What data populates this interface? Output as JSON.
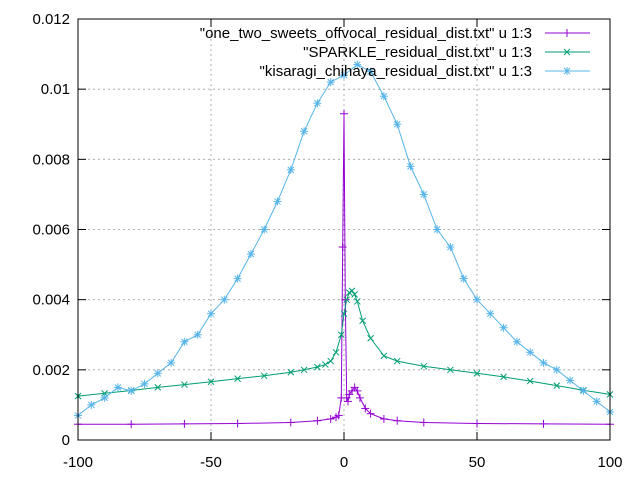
{
  "chart_data": {
    "type": "line",
    "title": "",
    "xlabel": "",
    "ylabel": "",
    "xlim": [
      -100,
      100
    ],
    "ylim": [
      0,
      0.012
    ],
    "grid": true,
    "legend_position": "top-right",
    "x_ticks": [
      "-100",
      "-50",
      "0",
      "50",
      "100"
    ],
    "y_ticks": [
      "0",
      "0.002",
      "0.004",
      "0.006",
      "0.008",
      "0.01",
      "0.012"
    ],
    "series": [
      {
        "name": "\"one_two_sweets_offvocal_residual_dist.txt\" u 1:3",
        "color": "#9400d3",
        "marker": "plus",
        "x": [
          -100,
          -80,
          -60,
          -40,
          -20,
          -10,
          -5,
          -3,
          -2,
          -1,
          -0.5,
          0,
          0.5,
          1,
          1.5,
          2,
          3,
          4,
          5,
          6,
          8,
          10,
          15,
          20,
          30,
          50,
          75,
          100
        ],
        "y": [
          0.00045,
          0.00045,
          0.00046,
          0.00047,
          0.0005,
          0.00055,
          0.0006,
          0.00065,
          0.0007,
          0.0012,
          0.0055,
          0.0093,
          0.004,
          0.0012,
          0.0011,
          0.0013,
          0.0014,
          0.0015,
          0.0014,
          0.0012,
          0.0009,
          0.00075,
          0.0006,
          0.00055,
          0.0005,
          0.00047,
          0.00046,
          0.00045
        ]
      },
      {
        "name": "\"SPARKLE_residual_dist.txt\" u 1:3",
        "color": "#009e73",
        "marker": "x",
        "x": [
          -100,
          -90,
          -80,
          -70,
          -60,
          -50,
          -40,
          -30,
          -20,
          -15,
          -10,
          -7,
          -5,
          -3,
          -1,
          0,
          1,
          2,
          3,
          4,
          5,
          7,
          10,
          15,
          20,
          30,
          40,
          50,
          60,
          70,
          80,
          90,
          100
        ],
        "y": [
          0.00125,
          0.00133,
          0.00141,
          0.0015,
          0.00158,
          0.00166,
          0.00175,
          0.00183,
          0.00193,
          0.002,
          0.00208,
          0.00215,
          0.00225,
          0.0025,
          0.003,
          0.0036,
          0.004,
          0.0042,
          0.00425,
          0.00415,
          0.00395,
          0.0034,
          0.0029,
          0.0024,
          0.00225,
          0.0021,
          0.002,
          0.0019,
          0.0018,
          0.00168,
          0.00155,
          0.00142,
          0.0013
        ]
      },
      {
        "name": "\"kisaragi_chihaya_residual_dist.txt\" u 1:3",
        "color": "#56b4e9",
        "marker": "star",
        "x": [
          -100,
          -95,
          -90,
          -85,
          -80,
          -75,
          -70,
          -65,
          -60,
          -55,
          -50,
          -45,
          -40,
          -35,
          -30,
          -25,
          -20,
          -15,
          -10,
          -5,
          0,
          5,
          10,
          15,
          20,
          25,
          30,
          35,
          40,
          45,
          50,
          55,
          60,
          65,
          70,
          75,
          80,
          85,
          90,
          95,
          100
        ],
        "y": [
          0.0007,
          0.001,
          0.0012,
          0.0015,
          0.0014,
          0.0016,
          0.0019,
          0.0022,
          0.0028,
          0.003,
          0.0036,
          0.004,
          0.0046,
          0.0053,
          0.006,
          0.0068,
          0.0077,
          0.0088,
          0.0096,
          0.0102,
          0.0104,
          0.0107,
          0.0105,
          0.0098,
          0.009,
          0.0078,
          0.007,
          0.006,
          0.0055,
          0.0046,
          0.004,
          0.0036,
          0.0032,
          0.0028,
          0.0025,
          0.0022,
          0.002,
          0.0017,
          0.0014,
          0.0011,
          0.0008
        ]
      }
    ]
  }
}
